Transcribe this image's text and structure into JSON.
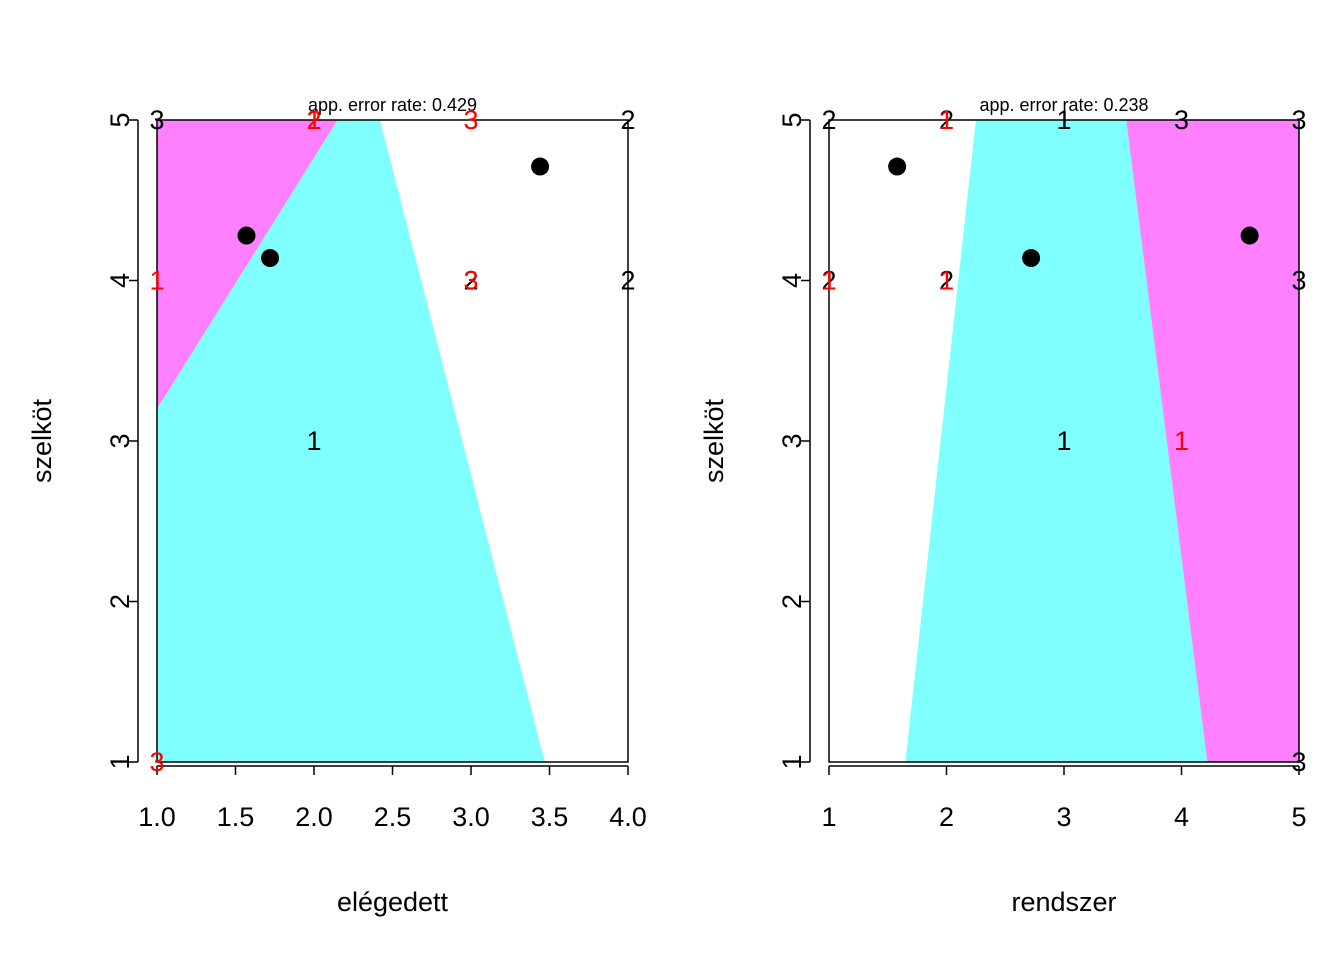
{
  "colors": {
    "region_1": "#80FFFF",
    "region_2": "#FFFFFF",
    "region_3": "#FF80FF",
    "correct": "#000000",
    "misclassified": "#FF0000",
    "mean": "#000000"
  },
  "chart_data": [
    {
      "type": "scatter",
      "title": "app. error rate: 0.429",
      "xlabel": "elégedett",
      "ylabel": "szelköt",
      "xlim": [
        1.0,
        4.0
      ],
      "ylim": [
        1.0,
        5.0
      ],
      "x_ticks": [
        1.0,
        1.5,
        2.0,
        2.5,
        3.0,
        3.5,
        4.0
      ],
      "x_tick_labels": [
        "1.0",
        "1.5",
        "2.0",
        "2.5",
        "3.0",
        "3.5",
        "4.0"
      ],
      "y_ticks": [
        1,
        2,
        3,
        4,
        5
      ],
      "y_tick_labels": [
        "1",
        "2",
        "3",
        "4",
        "5"
      ],
      "partition": {
        "region_3_boundary": [
          [
            1.0,
            3.2
          ],
          [
            2.15,
            5.0
          ]
        ],
        "region_1_right_boundary": [
          [
            2.42,
            5.0
          ],
          [
            3.47,
            1.0
          ]
        ],
        "region_3_fill": "upper-left",
        "region_1_fill": "lower-left",
        "region_2_fill": "right"
      },
      "points": [
        {
          "x": 1.0,
          "y": 5.0,
          "label": "3",
          "misclassified": false
        },
        {
          "x": 2.0,
          "y": 5.0,
          "label": "1",
          "misclassified": true
        },
        {
          "x": 2.0,
          "y": 5.0,
          "label": "2",
          "misclassified": true
        },
        {
          "x": 3.0,
          "y": 5.0,
          "label": "3",
          "misclassified": true
        },
        {
          "x": 4.0,
          "y": 5.0,
          "label": "2",
          "misclassified": false
        },
        {
          "x": 1.0,
          "y": 4.0,
          "label": "1",
          "misclassified": true
        },
        {
          "x": 3.0,
          "y": 4.0,
          "label": "2",
          "misclassified": false
        },
        {
          "x": 3.0,
          "y": 4.0,
          "label": "3",
          "misclassified": true
        },
        {
          "x": 4.0,
          "y": 4.0,
          "label": "2",
          "misclassified": false
        },
        {
          "x": 2.0,
          "y": 3.0,
          "label": "1",
          "misclassified": false
        },
        {
          "x": 1.0,
          "y": 1.0,
          "label": "3",
          "misclassified": true
        }
      ],
      "means": [
        {
          "x": 1.57,
          "y": 4.28
        },
        {
          "x": 1.72,
          "y": 4.14
        },
        {
          "x": 3.44,
          "y": 4.71
        }
      ]
    },
    {
      "type": "scatter",
      "title": "app. error rate: 0.238",
      "xlabel": "rendszer",
      "ylabel": "szelköt",
      "xlim": [
        1.0,
        5.0
      ],
      "ylim": [
        1.0,
        5.0
      ],
      "x_ticks": [
        1,
        2,
        3,
        4,
        5
      ],
      "x_tick_labels": [
        "1",
        "2",
        "3",
        "4",
        "5"
      ],
      "y_ticks": [
        1,
        2,
        3,
        4,
        5
      ],
      "y_tick_labels": [
        "1",
        "2",
        "3",
        "4",
        "5"
      ],
      "partition": {
        "region_1_left_boundary": [
          [
            1.65,
            1.0
          ],
          [
            2.25,
            5.0
          ]
        ],
        "region_1_right_boundary": [
          [
            4.22,
            1.0
          ],
          [
            3.53,
            5.0
          ]
        ],
        "region_2_fill": "left",
        "region_1_fill": "middle",
        "region_3_fill": "right"
      },
      "points": [
        {
          "x": 1.0,
          "y": 5.0,
          "label": "2",
          "misclassified": false
        },
        {
          "x": 2.0,
          "y": 5.0,
          "label": "2",
          "misclassified": false
        },
        {
          "x": 2.0,
          "y": 5.0,
          "label": "1",
          "misclassified": true
        },
        {
          "x": 3.0,
          "y": 5.0,
          "label": "1",
          "misclassified": false
        },
        {
          "x": 4.0,
          "y": 5.0,
          "label": "3",
          "misclassified": false
        },
        {
          "x": 5.0,
          "y": 5.0,
          "label": "3",
          "misclassified": false
        },
        {
          "x": 1.0,
          "y": 4.0,
          "label": "2",
          "misclassified": false
        },
        {
          "x": 1.0,
          "y": 4.0,
          "label": "1",
          "misclassified": true
        },
        {
          "x": 2.0,
          "y": 4.0,
          "label": "2",
          "misclassified": false
        },
        {
          "x": 2.0,
          "y": 4.0,
          "label": "1",
          "misclassified": true
        },
        {
          "x": 5.0,
          "y": 4.0,
          "label": "3",
          "misclassified": false
        },
        {
          "x": 3.0,
          "y": 3.0,
          "label": "1",
          "misclassified": false
        },
        {
          "x": 4.0,
          "y": 3.0,
          "label": "1",
          "misclassified": true
        },
        {
          "x": 5.0,
          "y": 1.0,
          "label": "3",
          "misclassified": false
        }
      ],
      "means": [
        {
          "x": 1.58,
          "y": 4.71
        },
        {
          "x": 2.72,
          "y": 4.14
        },
        {
          "x": 4.58,
          "y": 4.28
        }
      ]
    }
  ]
}
